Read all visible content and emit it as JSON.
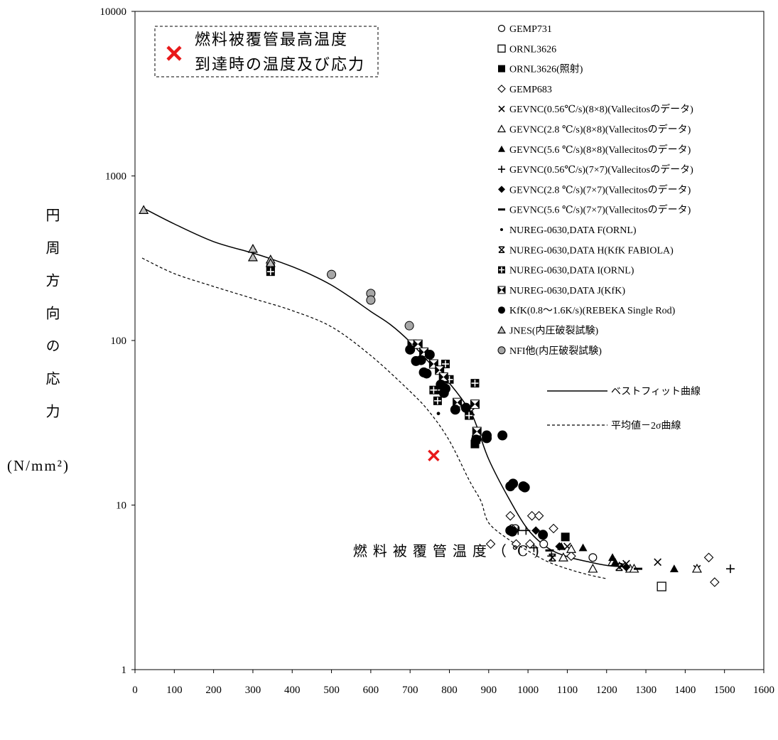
{
  "chart_data": {
    "type": "scatter",
    "xlabel": "燃料被覆管温度（℃)",
    "ylabel": "円周方向の応力",
    "ylabel_unit": "(N/mm²)",
    "xlim": [
      0,
      1600
    ],
    "ylim": [
      1,
      10000
    ],
    "yscale": "log",
    "grid": false,
    "legend_position": "top-right",
    "x_ticks": [
      "0",
      "100",
      "200",
      "300",
      "400",
      "500",
      "600",
      "700",
      "800",
      "900",
      "1000",
      "1100",
      "1200",
      "1300",
      "1400",
      "1500",
      "1600"
    ],
    "y_ticks": [
      "1",
      "10",
      "100",
      "1000",
      "10000"
    ],
    "annotation": {
      "lines": [
        "燃料被覆管最高温度",
        "到達時の温度及び応力"
      ],
      "x": 760,
      "y": 20,
      "color": "#e8191a",
      "marker": "cross"
    },
    "series": [
      {
        "name": "GEMP731",
        "marker": "circle-open",
        "points": [
          [
            960,
            7.2
          ],
          [
            968,
            7.2
          ],
          [
            1040,
            5.8
          ],
          [
            1165,
            4.8
          ]
        ]
      },
      {
        "name": "ORNL3626",
        "marker": "square-open",
        "points": [
          [
            1340,
            3.2
          ]
        ]
      },
      {
        "name": "ORNL3626(照射)",
        "marker": "square-filled",
        "points": [
          [
            865,
            23.5
          ],
          [
            868,
            25
          ],
          [
            1095,
            6.4
          ]
        ]
      },
      {
        "name": "GEMP683",
        "marker": "diamond-open",
        "points": [
          [
            905,
            5.8
          ],
          [
            955,
            8.6
          ],
          [
            965,
            7.0
          ],
          [
            970,
            5.8
          ],
          [
            1010,
            8.6
          ],
          [
            1028,
            8.6
          ],
          [
            1005,
            5.8
          ],
          [
            1065,
            7.2
          ],
          [
            1110,
            4.9
          ],
          [
            1460,
            4.8
          ],
          [
            1475,
            3.4
          ]
        ]
      },
      {
        "name": "GEVNC(0.56℃/s)(8×8)(Vallecitosのデータ)",
        "marker": "cross",
        "points": [
          [
            1100,
            5.6
          ],
          [
            1240,
            4.3
          ],
          [
            1250,
            4.4
          ],
          [
            1330,
            4.5
          ],
          [
            1430,
            4.1
          ]
        ]
      },
      {
        "name": "GEVNC(2.8 ℃/s)(8×8)(Vallecitosのデータ)",
        "marker": "triangle-open",
        "points": [
          [
            1090,
            4.8
          ],
          [
            1110,
            5.4
          ],
          [
            1165,
            4.1
          ],
          [
            1215,
            4.5
          ],
          [
            1260,
            4.1
          ],
          [
            1270,
            4.1
          ],
          [
            1430,
            4.1
          ]
        ]
      },
      {
        "name": "GEVNC(5.6 ℃/s)(8×8)(Vallecitosのデータ)",
        "marker": "triangle-filled",
        "points": [
          [
            1085,
            5.6
          ],
          [
            1140,
            5.5
          ],
          [
            1215,
            4.8
          ],
          [
            1222,
            4.5
          ],
          [
            1372,
            4.1
          ]
        ]
      },
      {
        "name": "GEVNC(0.56℃/s)(7×7)(Vallecitosのデータ)",
        "marker": "plus",
        "points": [
          [
            975,
            7.0
          ],
          [
            995,
            7.0
          ],
          [
            1015,
            5.5
          ],
          [
            1060,
            4.9
          ],
          [
            1515,
            4.1
          ]
        ]
      },
      {
        "name": "GEVNC(2.8 ℃/s)(7×7)(Vallecitosのデータ)",
        "marker": "diamond-filled",
        "points": [
          [
            1020,
            7.0
          ],
          [
            1080,
            5.6
          ],
          [
            1250,
            4.2
          ]
        ]
      },
      {
        "name": "GEVNC(5.6 ℃/s)(7×7)(Vallecitosのデータ)",
        "marker": "dash",
        "points": [
          [
            1055,
            5.3
          ],
          [
            1280,
            4.1
          ]
        ]
      },
      {
        "name": "NUREG-0630,DATA F(ORNL)",
        "marker": "dot",
        "points": [
          [
            772,
            36
          ]
        ]
      },
      {
        "name": "NUREG-0630,DATA H(KfK FABIOLA)",
        "marker": "asterisk",
        "points": [
          [
            855,
            37
          ],
          [
            1062,
            4.8
          ],
          [
            1232,
            4.2
          ]
        ]
      },
      {
        "name": "NUREG-0630,DATA I(ORNL)",
        "marker": "plus-square",
        "points": [
          [
            345,
            275
          ],
          [
            345,
            262
          ],
          [
            760,
            50
          ],
          [
            770,
            43
          ],
          [
            780,
            50
          ],
          [
            790,
            72
          ],
          [
            800,
            58
          ],
          [
            820,
            42
          ],
          [
            850,
            35
          ],
          [
            865,
            55
          ]
        ]
      },
      {
        "name": "NUREG-0630,DATA J(KfK)",
        "marker": "bowtie",
        "points": [
          [
            705,
            95
          ],
          [
            720,
            95
          ],
          [
            735,
            85
          ],
          [
            760,
            72
          ],
          [
            775,
            66
          ],
          [
            785,
            60
          ],
          [
            820,
            42
          ],
          [
            865,
            41
          ],
          [
            870,
            28
          ]
        ]
      },
      {
        "name": "KfK(0.8～1.6K/s)(REBEKA Single Rod)",
        "marker": "circle-filled",
        "points": [
          [
            700,
            88
          ],
          [
            715,
            75
          ],
          [
            728,
            76
          ],
          [
            735,
            64
          ],
          [
            742,
            63
          ],
          [
            750,
            82
          ],
          [
            778,
            54
          ],
          [
            786,
            48
          ],
          [
            790,
            51
          ],
          [
            815,
            38
          ],
          [
            842,
            39
          ],
          [
            868,
            25
          ],
          [
            895,
            26.5
          ],
          [
            895,
            25.5
          ],
          [
            935,
            26.5
          ],
          [
            955,
            13.0
          ],
          [
            962,
            13.5
          ],
          [
            988,
            13.0
          ],
          [
            992,
            12.8
          ],
          [
            955,
            7.0
          ],
          [
            960,
            6.9
          ],
          [
            1038,
            6.6
          ]
        ]
      },
      {
        "name": "JNES(内圧破裂試験)",
        "marker": "triangle-gray",
        "points": [
          [
            22,
            620
          ],
          [
            300,
            360
          ],
          [
            300,
            320
          ],
          [
            345,
            310
          ],
          [
            345,
            295
          ]
        ]
      },
      {
        "name": "NFI他(内圧破裂試験)",
        "marker": "circle-gray",
        "points": [
          [
            500,
            252
          ],
          [
            600,
            193
          ],
          [
            600,
            176
          ],
          [
            698,
            123
          ]
        ]
      }
    ],
    "curves": [
      {
        "name": "ベストフィット曲線",
        "style": "solid",
        "points": [
          [
            20,
            640
          ],
          [
            100,
            511
          ],
          [
            200,
            399
          ],
          [
            300,
            340
          ],
          [
            350,
            311
          ],
          [
            400,
            281
          ],
          [
            450,
            250
          ],
          [
            500,
            217
          ],
          [
            550,
            182
          ],
          [
            600,
            150
          ],
          [
            650,
            125
          ],
          [
            700,
            98
          ],
          [
            750,
            73
          ],
          [
            800,
            55
          ],
          [
            850,
            38
          ],
          [
            870,
            30
          ],
          [
            900,
            19
          ],
          [
            950,
            11.1
          ],
          [
            1000,
            7.1
          ],
          [
            1050,
            5.5
          ],
          [
            1100,
            4.86
          ],
          [
            1150,
            4.54
          ],
          [
            1200,
            4.3
          ],
          [
            1250,
            4.2
          ]
        ]
      },
      {
        "name": "平均値－2σ曲線",
        "style": "dashed",
        "points": [
          [
            18,
            317
          ],
          [
            100,
            255
          ],
          [
            200,
            213
          ],
          [
            300,
            180
          ],
          [
            400,
            152
          ],
          [
            500,
            121
          ],
          [
            600,
            81
          ],
          [
            700,
            49
          ],
          [
            750,
            36.6
          ],
          [
            800,
            24.6
          ],
          [
            850,
            14.2
          ],
          [
            880,
            10.6
          ],
          [
            900,
            7.8
          ],
          [
            950,
            6.2
          ],
          [
            1000,
            5.27
          ],
          [
            1050,
            4.53
          ],
          [
            1100,
            4.1
          ],
          [
            1150,
            3.79
          ],
          [
            1200,
            3.57
          ]
        ]
      }
    ]
  }
}
